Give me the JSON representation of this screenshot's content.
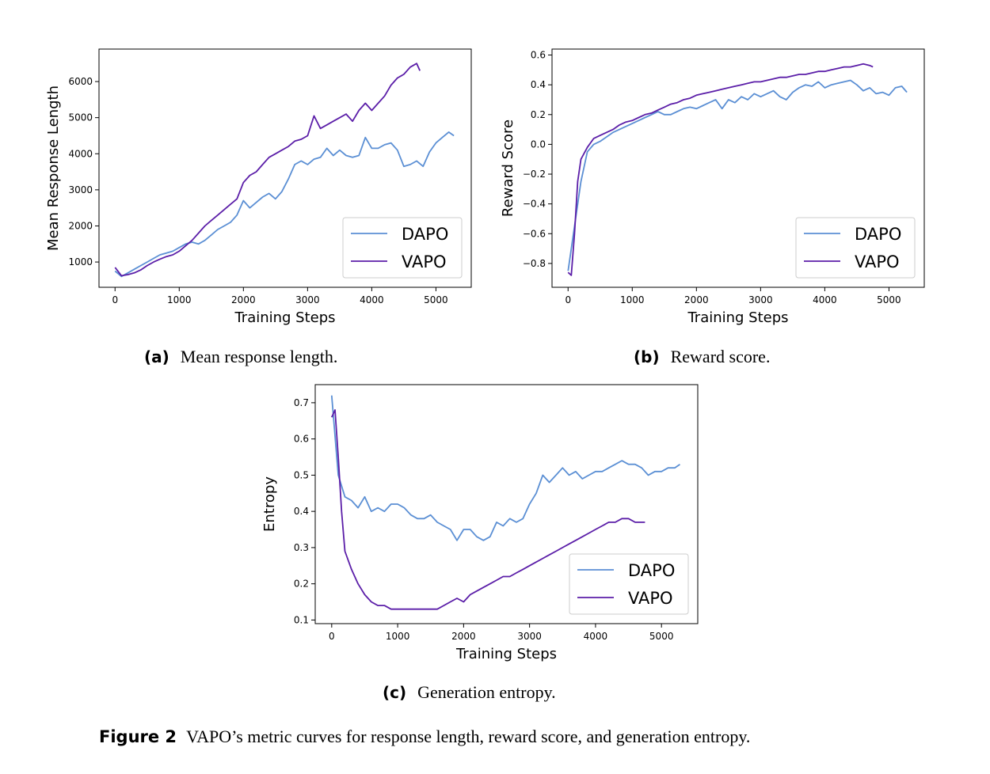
{
  "chart_data": [
    {
      "id": "a",
      "type": "line",
      "caption_label": "(a)",
      "caption_text": "Mean response length.",
      "xlabel": "Training Steps",
      "ylabel": "Mean Response Length",
      "xlim": [
        -250,
        5550
      ],
      "ylim": [
        300,
        6900
      ],
      "xticks": [
        0,
        1000,
        2000,
        3000,
        4000,
        5000
      ],
      "yticks": [
        1000,
        2000,
        3000,
        4000,
        5000,
        6000
      ],
      "legend": "lower-right",
      "series": [
        {
          "name": "DAPO",
          "color": "#5b8fd4",
          "x": [
            0,
            100,
            200,
            300,
            400,
            500,
            600,
            700,
            800,
            900,
            1000,
            1100,
            1200,
            1300,
            1400,
            1500,
            1600,
            1700,
            1800,
            1900,
            2000,
            2100,
            2200,
            2300,
            2400,
            2500,
            2600,
            2700,
            2800,
            2900,
            3000,
            3100,
            3200,
            3300,
            3400,
            3500,
            3600,
            3700,
            3800,
            3900,
            4000,
            4100,
            4200,
            4300,
            4400,
            4500,
            4600,
            4700,
            4800,
            4900,
            5000,
            5100,
            5200,
            5280
          ],
          "y": [
            750,
            600,
            700,
            800,
            900,
            1000,
            1100,
            1200,
            1250,
            1300,
            1400,
            1500,
            1550,
            1500,
            1600,
            1750,
            1900,
            2000,
            2100,
            2300,
            2700,
            2500,
            2650,
            2800,
            2900,
            2750,
            2950,
            3300,
            3700,
            3800,
            3700,
            3850,
            3900,
            4150,
            3950,
            4100,
            3950,
            3900,
            3950,
            4450,
            4150,
            4150,
            4250,
            4300,
            4100,
            3650,
            3700,
            3800,
            3650,
            4050,
            4300,
            4450,
            4600,
            4500
          ]
        },
        {
          "name": "VAPO",
          "color": "#5b1ea8",
          "x": [
            0,
            100,
            200,
            300,
            400,
            500,
            600,
            700,
            800,
            900,
            1000,
            1100,
            1200,
            1300,
            1400,
            1500,
            1600,
            1700,
            1800,
            1900,
            2000,
            2100,
            2200,
            2300,
            2400,
            2500,
            2600,
            2700,
            2800,
            2900,
            3000,
            3100,
            3200,
            3300,
            3400,
            3500,
            3600,
            3700,
            3800,
            3900,
            4000,
            4100,
            4200,
            4300,
            4400,
            4500,
            4600,
            4700,
            4750
          ],
          "y": [
            850,
            620,
            650,
            700,
            780,
            900,
            1000,
            1080,
            1150,
            1200,
            1300,
            1450,
            1600,
            1800,
            2000,
            2150,
            2300,
            2450,
            2600,
            2750,
            3200,
            3400,
            3500,
            3700,
            3900,
            4000,
            4100,
            4200,
            4350,
            4400,
            4500,
            5050,
            4700,
            4800,
            4900,
            5000,
            5100,
            4900,
            5200,
            5400,
            5200,
            5400,
            5600,
            5900,
            6100,
            6200,
            6400,
            6500,
            6300
          ]
        }
      ]
    },
    {
      "id": "b",
      "type": "line",
      "caption_label": "(b)",
      "caption_text": "Reward score.",
      "xlabel": "Training Steps",
      "ylabel": "Reward Score",
      "xlim": [
        -250,
        5550
      ],
      "ylim": [
        -0.96,
        0.64
      ],
      "xticks": [
        0,
        1000,
        2000,
        3000,
        4000,
        5000
      ],
      "yticks": [
        -0.8,
        -0.6,
        -0.4,
        -0.2,
        0.0,
        0.2,
        0.4,
        0.6
      ],
      "ytick_labels": [
        "−0.8",
        "−0.6",
        "−0.4",
        "−0.2",
        "0.0",
        "0.2",
        "0.4",
        "0.6"
      ],
      "legend": "lower-right",
      "series": [
        {
          "name": "DAPO",
          "color": "#5b8fd4",
          "x": [
            0,
            100,
            200,
            300,
            400,
            500,
            600,
            700,
            800,
            900,
            1000,
            1100,
            1200,
            1300,
            1400,
            1500,
            1600,
            1700,
            1800,
            1900,
            2000,
            2100,
            2200,
            2300,
            2400,
            2500,
            2600,
            2700,
            2800,
            2900,
            3000,
            3100,
            3200,
            3300,
            3400,
            3500,
            3600,
            3700,
            3800,
            3900,
            4000,
            4100,
            4200,
            4300,
            4400,
            4500,
            4600,
            4700,
            4800,
            4900,
            5000,
            5100,
            5200,
            5280
          ],
          "y": [
            -0.85,
            -0.55,
            -0.25,
            -0.05,
            0.0,
            0.02,
            0.05,
            0.08,
            0.1,
            0.12,
            0.14,
            0.16,
            0.18,
            0.2,
            0.22,
            0.2,
            0.2,
            0.22,
            0.24,
            0.25,
            0.24,
            0.26,
            0.28,
            0.3,
            0.24,
            0.3,
            0.28,
            0.32,
            0.3,
            0.34,
            0.32,
            0.34,
            0.36,
            0.32,
            0.3,
            0.35,
            0.38,
            0.4,
            0.39,
            0.42,
            0.38,
            0.4,
            0.41,
            0.42,
            0.43,
            0.4,
            0.36,
            0.38,
            0.34,
            0.35,
            0.33,
            0.38,
            0.39,
            0.35
          ]
        },
        {
          "name": "VAPO",
          "color": "#5b1ea8",
          "x": [
            0,
            50,
            100,
            150,
            200,
            300,
            400,
            500,
            600,
            700,
            800,
            900,
            1000,
            1100,
            1200,
            1300,
            1400,
            1500,
            1600,
            1700,
            1800,
            1900,
            2000,
            2100,
            2200,
            2300,
            2400,
            2500,
            2600,
            2700,
            2800,
            2900,
            3000,
            3100,
            3200,
            3300,
            3400,
            3500,
            3600,
            3700,
            3800,
            3900,
            4000,
            4100,
            4200,
            4300,
            4400,
            4500,
            4600,
            4700,
            4750
          ],
          "y": [
            -0.86,
            -0.88,
            -0.6,
            -0.25,
            -0.1,
            -0.02,
            0.04,
            0.06,
            0.08,
            0.1,
            0.13,
            0.15,
            0.16,
            0.18,
            0.2,
            0.21,
            0.23,
            0.25,
            0.27,
            0.28,
            0.3,
            0.31,
            0.33,
            0.34,
            0.35,
            0.36,
            0.37,
            0.38,
            0.39,
            0.4,
            0.41,
            0.42,
            0.42,
            0.43,
            0.44,
            0.45,
            0.45,
            0.46,
            0.47,
            0.47,
            0.48,
            0.49,
            0.49,
            0.5,
            0.51,
            0.52,
            0.52,
            0.53,
            0.54,
            0.53,
            0.52
          ]
        }
      ]
    },
    {
      "id": "c",
      "type": "line",
      "caption_label": "(c)",
      "caption_text": "Generation entropy.",
      "xlabel": "Training Steps",
      "ylabel": "Entropy",
      "xlim": [
        -250,
        5550
      ],
      "ylim": [
        0.09,
        0.75
      ],
      "xticks": [
        0,
        1000,
        2000,
        3000,
        4000,
        5000
      ],
      "yticks": [
        0.1,
        0.2,
        0.3,
        0.4,
        0.5,
        0.6,
        0.7
      ],
      "legend": "lower-right",
      "series": [
        {
          "name": "DAPO",
          "color": "#5b8fd4",
          "x": [
            0,
            100,
            200,
            300,
            400,
            500,
            600,
            700,
            800,
            900,
            1000,
            1100,
            1200,
            1300,
            1400,
            1500,
            1600,
            1700,
            1800,
            1900,
            2000,
            2100,
            2200,
            2300,
            2400,
            2500,
            2600,
            2700,
            2800,
            2900,
            3000,
            3100,
            3200,
            3300,
            3400,
            3500,
            3600,
            3700,
            3800,
            3900,
            4000,
            4100,
            4200,
            4300,
            4400,
            4500,
            4600,
            4700,
            4800,
            4900,
            5000,
            5100,
            5200,
            5280
          ],
          "y": [
            0.72,
            0.5,
            0.44,
            0.43,
            0.41,
            0.44,
            0.4,
            0.41,
            0.4,
            0.42,
            0.42,
            0.41,
            0.39,
            0.38,
            0.38,
            0.39,
            0.37,
            0.36,
            0.35,
            0.32,
            0.35,
            0.35,
            0.33,
            0.32,
            0.33,
            0.37,
            0.36,
            0.38,
            0.37,
            0.38,
            0.42,
            0.45,
            0.5,
            0.48,
            0.5,
            0.52,
            0.5,
            0.51,
            0.49,
            0.5,
            0.51,
            0.51,
            0.52,
            0.53,
            0.54,
            0.53,
            0.53,
            0.52,
            0.5,
            0.51,
            0.51,
            0.52,
            0.52,
            0.53
          ]
        },
        {
          "name": "VAPO",
          "color": "#5b1ea8",
          "x": [
            0,
            50,
            100,
            150,
            200,
            300,
            400,
            500,
            600,
            700,
            800,
            900,
            1000,
            1100,
            1200,
            1300,
            1400,
            1500,
            1600,
            1700,
            1800,
            1900,
            2000,
            2100,
            2200,
            2300,
            2400,
            2500,
            2600,
            2700,
            2800,
            2900,
            3000,
            3100,
            3200,
            3300,
            3400,
            3500,
            3600,
            3700,
            3800,
            3900,
            4000,
            4100,
            4200,
            4300,
            4400,
            4500,
            4600,
            4700,
            4750
          ],
          "y": [
            0.66,
            0.68,
            0.55,
            0.4,
            0.29,
            0.24,
            0.2,
            0.17,
            0.15,
            0.14,
            0.14,
            0.13,
            0.13,
            0.13,
            0.13,
            0.13,
            0.13,
            0.13,
            0.13,
            0.14,
            0.15,
            0.16,
            0.15,
            0.17,
            0.18,
            0.19,
            0.2,
            0.21,
            0.22,
            0.22,
            0.23,
            0.24,
            0.25,
            0.26,
            0.27,
            0.28,
            0.29,
            0.3,
            0.31,
            0.32,
            0.33,
            0.34,
            0.35,
            0.36,
            0.37,
            0.37,
            0.38,
            0.38,
            0.37,
            0.37,
            0.37
          ]
        }
      ]
    }
  ],
  "figure_caption": {
    "label": "Figure 2",
    "text": "VAPO’s metric curves for response length, reward score, and generation entropy."
  }
}
